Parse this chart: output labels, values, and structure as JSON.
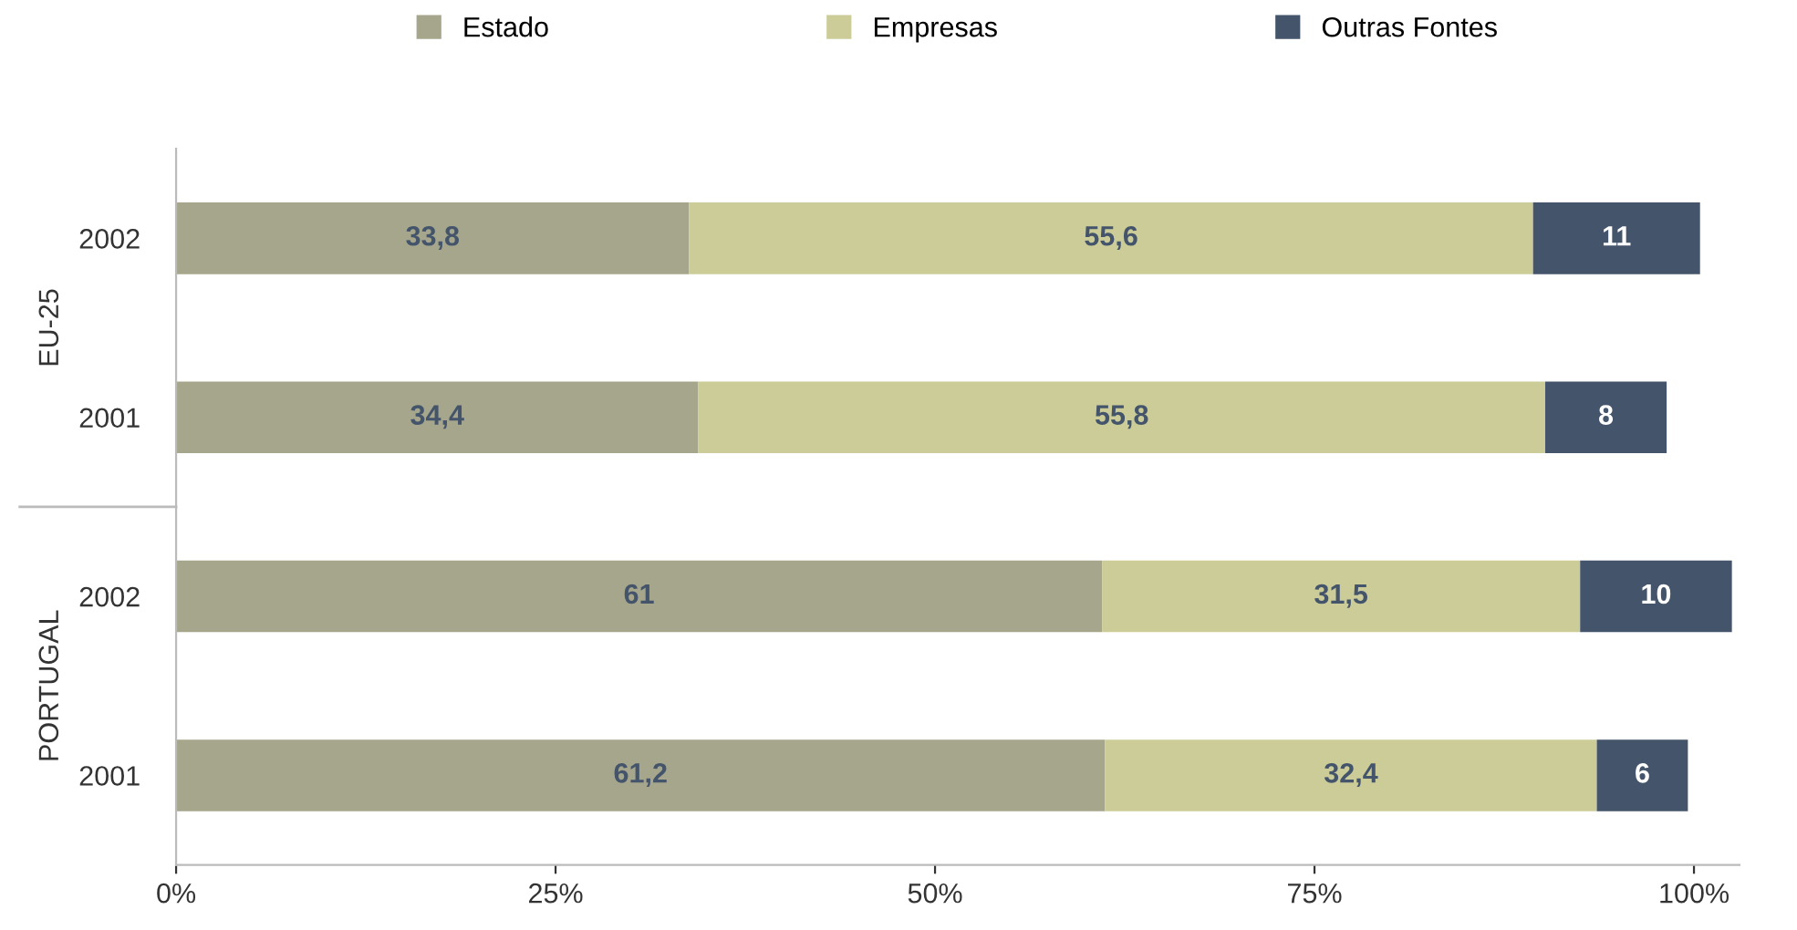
{
  "chart_data": {
    "type": "bar",
    "orientation": "horizontal",
    "stacked": true,
    "categories": [
      "2002",
      "2001",
      "2002",
      "2001"
    ],
    "series": [
      {
        "name": "Estado",
        "color": "#a6a68c",
        "values": [
          33.8,
          34.4,
          61,
          61.2
        ],
        "value_labels": [
          "33,8",
          "34,4",
          "61",
          "61,2"
        ]
      },
      {
        "name": "Empresas",
        "color": "#cccc99",
        "values": [
          55.6,
          55.8,
          31.5,
          32.4
        ],
        "value_labels": [
          "55,6",
          "55,8",
          "31,5",
          "32,4"
        ]
      },
      {
        "name": "Outras Fontes",
        "color": "#44546a",
        "values": [
          11,
          8,
          10,
          6
        ],
        "value_labels": [
          "11",
          "8",
          "10",
          "6"
        ]
      }
    ],
    "annotations": [
      "EU-25",
      "PORTUGAL"
    ],
    "xlim": [
      0,
      103
    ],
    "xticks": [
      {
        "value": 0,
        "label": "0%"
      },
      {
        "value": 25,
        "label": "25%"
      },
      {
        "value": 50,
        "label": "50%"
      },
      {
        "value": 75,
        "label": "75%"
      },
      {
        "value": 100,
        "label": "100%"
      }
    ],
    "grid": false,
    "legend": "top"
  }
}
